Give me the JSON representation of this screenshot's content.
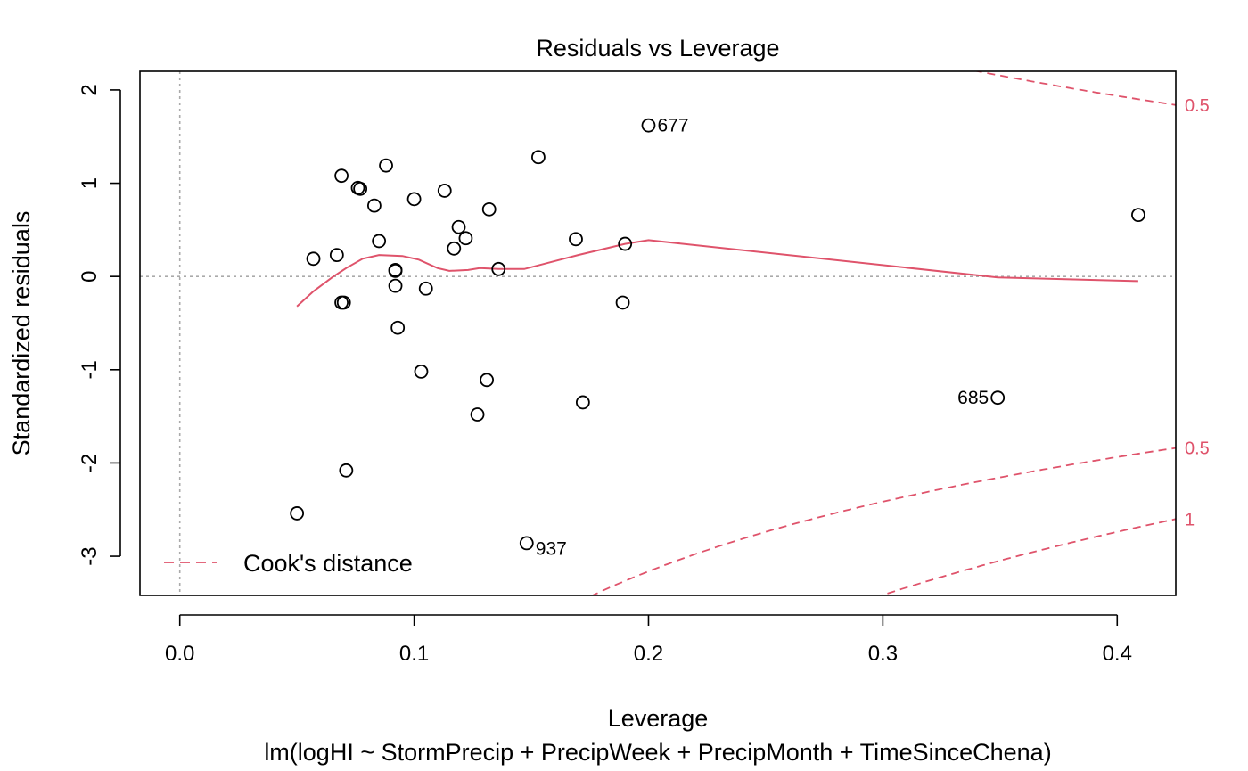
{
  "chart_data": {
    "type": "scatter",
    "title": "Residuals vs Leverage",
    "xlabel": "Leverage",
    "subtitle": "lm(logHI ~ StormPrecip + PrecipWeek + PrecipMonth + TimeSinceChena)",
    "ylabel": "Standardized residuals",
    "xlim": [
      -0.017,
      0.425
    ],
    "ylim": [
      -3.42,
      2.2
    ],
    "x_ticks": [
      {
        "value": 0.0,
        "label": "0.0"
      },
      {
        "value": 0.1,
        "label": "0.1"
      },
      {
        "value": 0.2,
        "label": "0.2"
      },
      {
        "value": 0.3,
        "label": "0.3"
      },
      {
        "value": 0.4,
        "label": "0.4"
      }
    ],
    "y_ticks": [
      {
        "value": 2,
        "label": "2"
      },
      {
        "value": 1,
        "label": "1"
      },
      {
        "value": 0,
        "label": "0"
      },
      {
        "value": -1,
        "label": "-1"
      },
      {
        "value": -2,
        "label": "-2"
      },
      {
        "value": -3,
        "label": "-3"
      }
    ],
    "grid": false,
    "point_color": "#000000",
    "smoother_color": "#DF536B",
    "cook_color": "#DF536B",
    "reference_line_color": "#AAAAAA",
    "points": [
      {
        "x": 0.2,
        "y": 1.62,
        "label": "677"
      },
      {
        "x": 0.349,
        "y": -1.3,
        "label": "685"
      },
      {
        "x": 0.148,
        "y": -2.86,
        "label": "937"
      },
      {
        "x": 0.409,
        "y": 0.66
      },
      {
        "x": 0.05,
        "y": -2.54
      },
      {
        "x": 0.057,
        "y": 0.19
      },
      {
        "x": 0.067,
        "y": 0.23
      },
      {
        "x": 0.069,
        "y": 1.08
      },
      {
        "x": 0.069,
        "y": -0.28
      },
      {
        "x": 0.07,
        "y": -0.28
      },
      {
        "x": 0.071,
        "y": -2.08
      },
      {
        "x": 0.076,
        "y": 0.95
      },
      {
        "x": 0.077,
        "y": 0.94
      },
      {
        "x": 0.083,
        "y": 0.76
      },
      {
        "x": 0.085,
        "y": 0.38
      },
      {
        "x": 0.088,
        "y": 1.19
      },
      {
        "x": 0.092,
        "y": 0.07
      },
      {
        "x": 0.092,
        "y": 0.06
      },
      {
        "x": 0.092,
        "y": -0.1
      },
      {
        "x": 0.093,
        "y": -0.55
      },
      {
        "x": 0.1,
        "y": 0.83
      },
      {
        "x": 0.103,
        "y": -1.02
      },
      {
        "x": 0.105,
        "y": -0.13
      },
      {
        "x": 0.113,
        "y": 0.92
      },
      {
        "x": 0.117,
        "y": 0.3
      },
      {
        "x": 0.119,
        "y": 0.53
      },
      {
        "x": 0.122,
        "y": 0.41
      },
      {
        "x": 0.127,
        "y": -1.48
      },
      {
        "x": 0.131,
        "y": -1.11
      },
      {
        "x": 0.132,
        "y": 0.72
      },
      {
        "x": 0.136,
        "y": 0.08
      },
      {
        "x": 0.153,
        "y": 1.28
      },
      {
        "x": 0.169,
        "y": 0.4
      },
      {
        "x": 0.172,
        "y": -1.35
      },
      {
        "x": 0.189,
        "y": -0.28
      },
      {
        "x": 0.19,
        "y": 0.35
      }
    ],
    "smoother": [
      {
        "x": 0.05,
        "y": -0.32
      },
      {
        "x": 0.057,
        "y": -0.16
      },
      {
        "x": 0.065,
        "y": -0.01
      },
      {
        "x": 0.071,
        "y": 0.09
      },
      {
        "x": 0.078,
        "y": 0.19
      },
      {
        "x": 0.085,
        "y": 0.23
      },
      {
        "x": 0.095,
        "y": 0.22
      },
      {
        "x": 0.102,
        "y": 0.18
      },
      {
        "x": 0.11,
        "y": 0.09
      },
      {
        "x": 0.115,
        "y": 0.06
      },
      {
        "x": 0.123,
        "y": 0.07
      },
      {
        "x": 0.128,
        "y": 0.09
      },
      {
        "x": 0.136,
        "y": 0.08
      },
      {
        "x": 0.147,
        "y": 0.08
      },
      {
        "x": 0.17,
        "y": 0.23
      },
      {
        "x": 0.19,
        "y": 0.35
      },
      {
        "x": 0.2,
        "y": 0.39
      },
      {
        "x": 0.349,
        "y": -0.01
      },
      {
        "x": 0.409,
        "y": -0.05
      }
    ],
    "cooks_distance": {
      "legend": "Cook's distance",
      "legend_position": "bottom-left",
      "levels": [
        {
          "value": 0.5,
          "label": "0.5",
          "sign": 1
        },
        {
          "value": 0.5,
          "label": "0.5",
          "sign": -1
        },
        {
          "value": 1,
          "label": "1",
          "sign": -1
        }
      ],
      "n_params": 5
    }
  }
}
